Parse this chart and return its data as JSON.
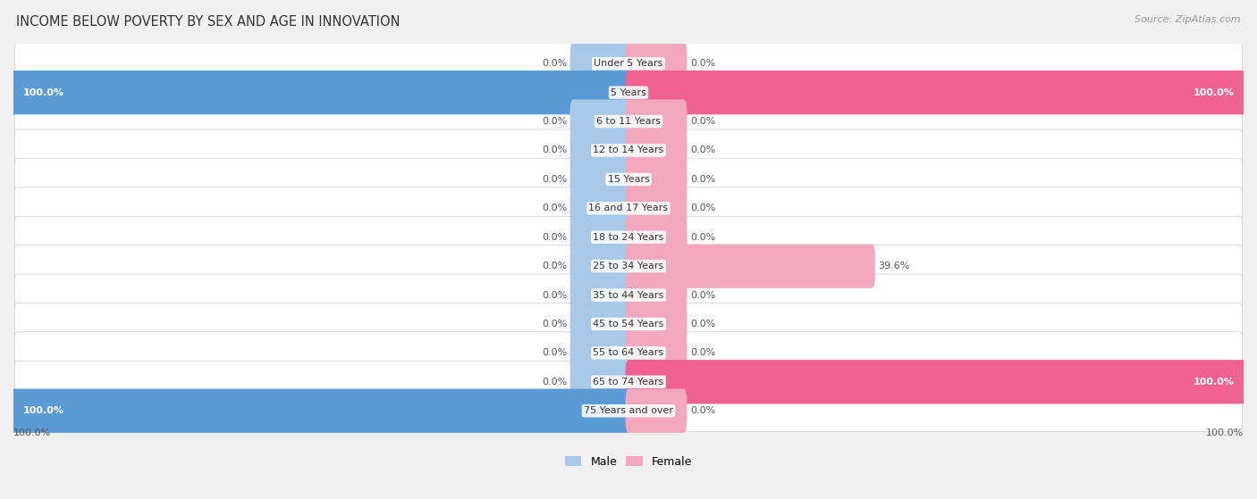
{
  "title": "INCOME BELOW POVERTY BY SEX AND AGE IN INNOVATION",
  "source": "Source: ZipAtlas.com",
  "categories": [
    "Under 5 Years",
    "5 Years",
    "6 to 11 Years",
    "12 to 14 Years",
    "15 Years",
    "16 and 17 Years",
    "18 to 24 Years",
    "25 to 34 Years",
    "35 to 44 Years",
    "45 to 54 Years",
    "55 to 64 Years",
    "65 to 74 Years",
    "75 Years and over"
  ],
  "male_values": [
    0.0,
    100.0,
    0.0,
    0.0,
    0.0,
    0.0,
    0.0,
    0.0,
    0.0,
    0.0,
    0.0,
    0.0,
    100.0
  ],
  "female_values": [
    0.0,
    100.0,
    0.0,
    0.0,
    0.0,
    0.0,
    0.0,
    39.6,
    0.0,
    0.0,
    0.0,
    100.0,
    0.0
  ],
  "male_color_light": "#a8c8e8",
  "male_color_full": "#5b9bd5",
  "female_color_light": "#f4a8c0",
  "female_color_full": "#f06292",
  "min_bar_display": 9.0,
  "title_fontsize": 10.5,
  "label_fontsize": 8.0,
  "source_fontsize": 8.0
}
